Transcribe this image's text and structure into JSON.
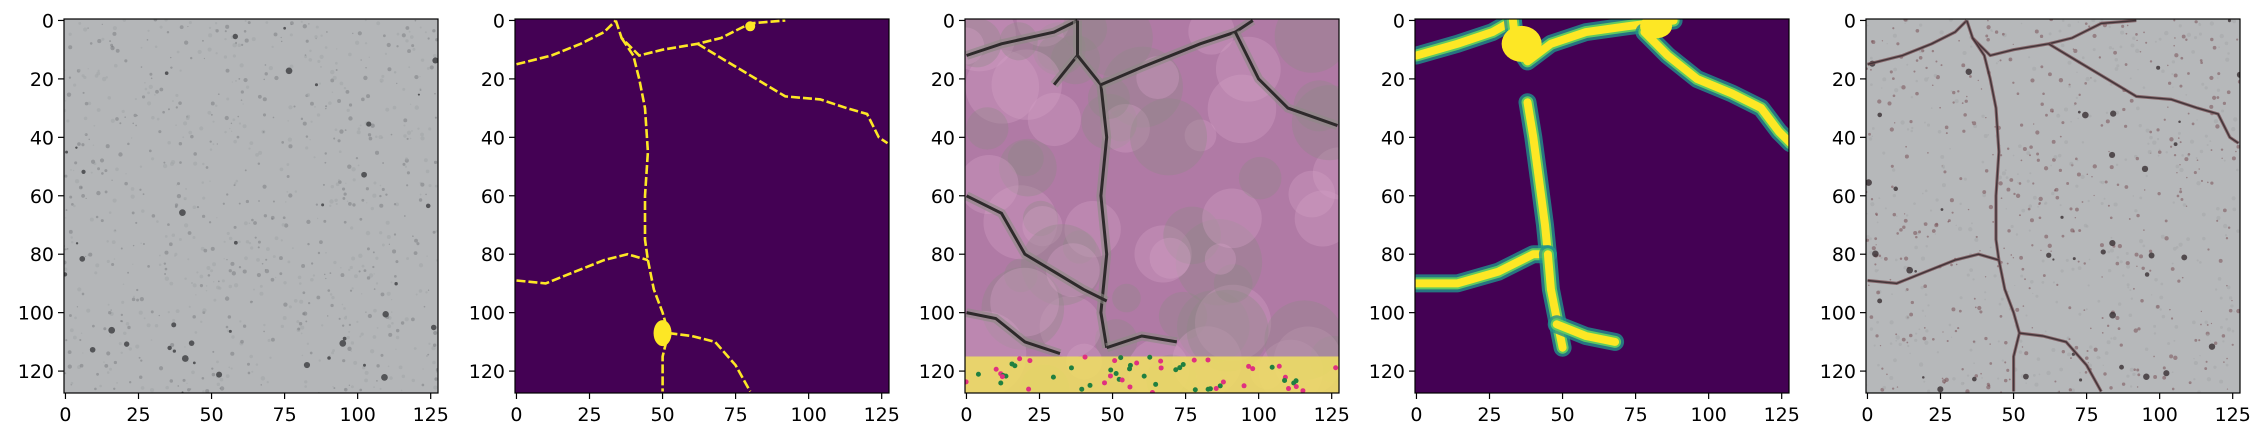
{
  "figure": {
    "panel_count": 5,
    "panels": [
      {
        "name": "input-concrete-texture",
        "content": "photo",
        "palette": [
          "#b4b6b8",
          "#a3a5a8",
          "#7d7f83",
          "#3c3d40"
        ]
      },
      {
        "name": "binary-crack-mask",
        "content": "mask",
        "palette": [
          "#440154",
          "#fde725"
        ]
      },
      {
        "name": "synthetic-pink-cracked-texture",
        "content": "synthetic",
        "palette": [
          "#b07aa5",
          "#d4a0c5",
          "#8e8a86",
          "#2e2a2b"
        ]
      },
      {
        "name": "blurred-crack-mask",
        "content": "heat",
        "palette": [
          "#440154",
          "#21918c",
          "#5ec962",
          "#fde725"
        ]
      },
      {
        "name": "composited-cracked-texture",
        "content": "photo-crack",
        "palette": [
          "#b6b8ba",
          "#a5a7aa",
          "#7a5258",
          "#3a2f33"
        ]
      }
    ],
    "axes": {
      "x_ticks": [
        "0",
        "25",
        "50",
        "75",
        "100",
        "125"
      ],
      "y_ticks": [
        "0",
        "20",
        "40",
        "60",
        "80",
        "100",
        "120"
      ],
      "x_tick_values": [
        0,
        25,
        50,
        75,
        100,
        125
      ],
      "y_tick_values": [
        0,
        20,
        40,
        60,
        80,
        100,
        120
      ],
      "xlim": [
        -0.5,
        127.5
      ],
      "ylim": [
        127.5,
        -0.5
      ]
    }
  }
}
